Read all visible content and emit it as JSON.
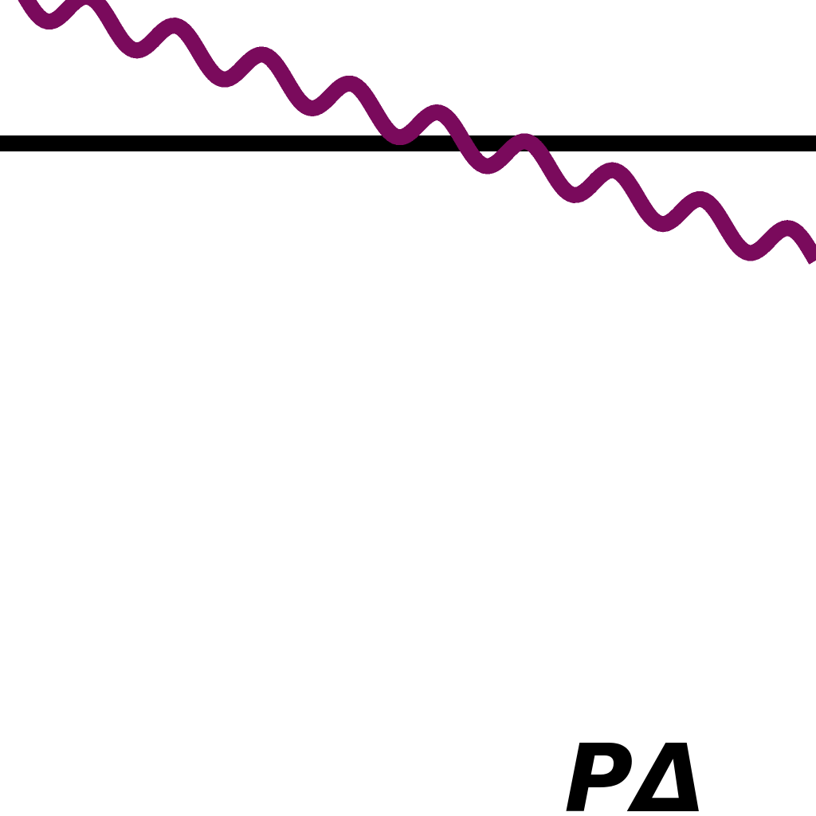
{
  "diagram": {
    "label": "PΔ",
    "colors": {
      "background": "#ffffff",
      "wavy_line": "#7a0a5c",
      "straight_line": "#000000",
      "label": "#000000"
    }
  }
}
